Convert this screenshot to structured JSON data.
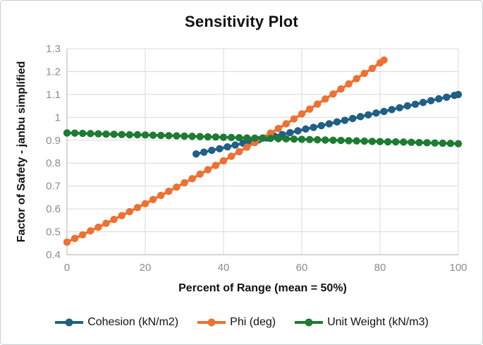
{
  "chart_data": {
    "type": "line",
    "title": "Sensitivity Plot",
    "xlabel": "Percent of Range (mean = 50%)",
    "ylabel": "Factor of Safety - janbu simplified",
    "xlim": [
      0,
      100
    ],
    "ylim": [
      0.4,
      1.3
    ],
    "x_ticks": [
      0,
      20,
      40,
      60,
      80,
      100
    ],
    "y_ticks": [
      0.4,
      0.5,
      0.6,
      0.7,
      0.8,
      0.9,
      1.0,
      1.1,
      1.2,
      1.3
    ],
    "y_tick_labels": [
      "0.4",
      "0.5",
      "0.6",
      "0.7",
      "0.8",
      "0.9",
      "1",
      "1.1",
      "1.2",
      "1.3"
    ],
    "grid": true,
    "legend_position": "bottom",
    "marker": "circle",
    "colors": {
      "gridline": "#d9d9d9",
      "axis_line": "#bfbfbf",
      "tick_text": "#8c8c8c"
    },
    "series": [
      {
        "name": "Cohesion (kN/m2)",
        "color": "#205f86",
        "x": [
          33,
          35,
          37,
          39,
          41,
          43,
          45,
          47,
          49,
          51,
          53,
          55,
          57,
          59,
          61,
          63,
          65,
          67,
          69,
          71,
          73,
          75,
          77,
          79,
          81,
          83,
          85,
          87,
          89,
          91,
          93,
          95,
          97,
          99,
          100
        ],
        "y": [
          0.84,
          0.848,
          0.856,
          0.863,
          0.871,
          0.879,
          0.887,
          0.894,
          0.902,
          0.91,
          0.918,
          0.925,
          0.933,
          0.941,
          0.949,
          0.956,
          0.964,
          0.972,
          0.98,
          0.987,
          0.995,
          1.003,
          1.011,
          1.019,
          1.026,
          1.034,
          1.042,
          1.05,
          1.057,
          1.065,
          1.073,
          1.081,
          1.088,
          1.096,
          1.1
        ]
      },
      {
        "name": "Phi (deg)",
        "color": "#ed7132",
        "x": [
          0,
          2,
          4,
          6,
          8,
          10,
          12,
          14,
          16,
          18,
          20,
          22,
          24,
          26,
          28,
          30,
          32,
          34,
          36,
          38,
          40,
          42,
          44,
          46,
          48,
          50,
          52,
          54,
          56,
          58,
          60,
          62,
          64,
          66,
          68,
          70,
          72,
          74,
          76,
          78,
          80,
          81
        ],
        "y": [
          0.455,
          0.471,
          0.487,
          0.504,
          0.52,
          0.537,
          0.554,
          0.571,
          0.588,
          0.606,
          0.623,
          0.641,
          0.659,
          0.677,
          0.695,
          0.714,
          0.732,
          0.752,
          0.771,
          0.79,
          0.81,
          0.83,
          0.85,
          0.87,
          0.89,
          0.91,
          0.931,
          0.951,
          0.972,
          0.993,
          1.015,
          1.036,
          1.058,
          1.08,
          1.102,
          1.124,
          1.146,
          1.169,
          1.192,
          1.214,
          1.238,
          1.25
        ]
      },
      {
        "name": "Unit Weight (kN/m3)",
        "color": "#1e7b34",
        "x": [
          0,
          2,
          4,
          6,
          8,
          10,
          12,
          14,
          16,
          18,
          20,
          22,
          24,
          26,
          28,
          30,
          32,
          34,
          36,
          38,
          40,
          42,
          44,
          46,
          48,
          50,
          52,
          54,
          56,
          58,
          60,
          62,
          64,
          66,
          68,
          70,
          72,
          74,
          76,
          78,
          80,
          82,
          84,
          86,
          88,
          90,
          92,
          94,
          96,
          98,
          100
        ],
        "y": [
          0.932,
          0.931,
          0.93,
          0.929,
          0.928,
          0.927,
          0.926,
          0.925,
          0.924,
          0.924,
          0.923,
          0.922,
          0.921,
          0.92,
          0.919,
          0.918,
          0.917,
          0.916,
          0.915,
          0.914,
          0.913,
          0.912,
          0.911,
          0.91,
          0.909,
          0.909,
          0.908,
          0.907,
          0.906,
          0.905,
          0.904,
          0.903,
          0.902,
          0.901,
          0.9,
          0.899,
          0.898,
          0.897,
          0.896,
          0.895,
          0.894,
          0.893,
          0.893,
          0.892,
          0.891,
          0.89,
          0.889,
          0.888,
          0.887,
          0.886,
          0.885
        ]
      }
    ]
  }
}
